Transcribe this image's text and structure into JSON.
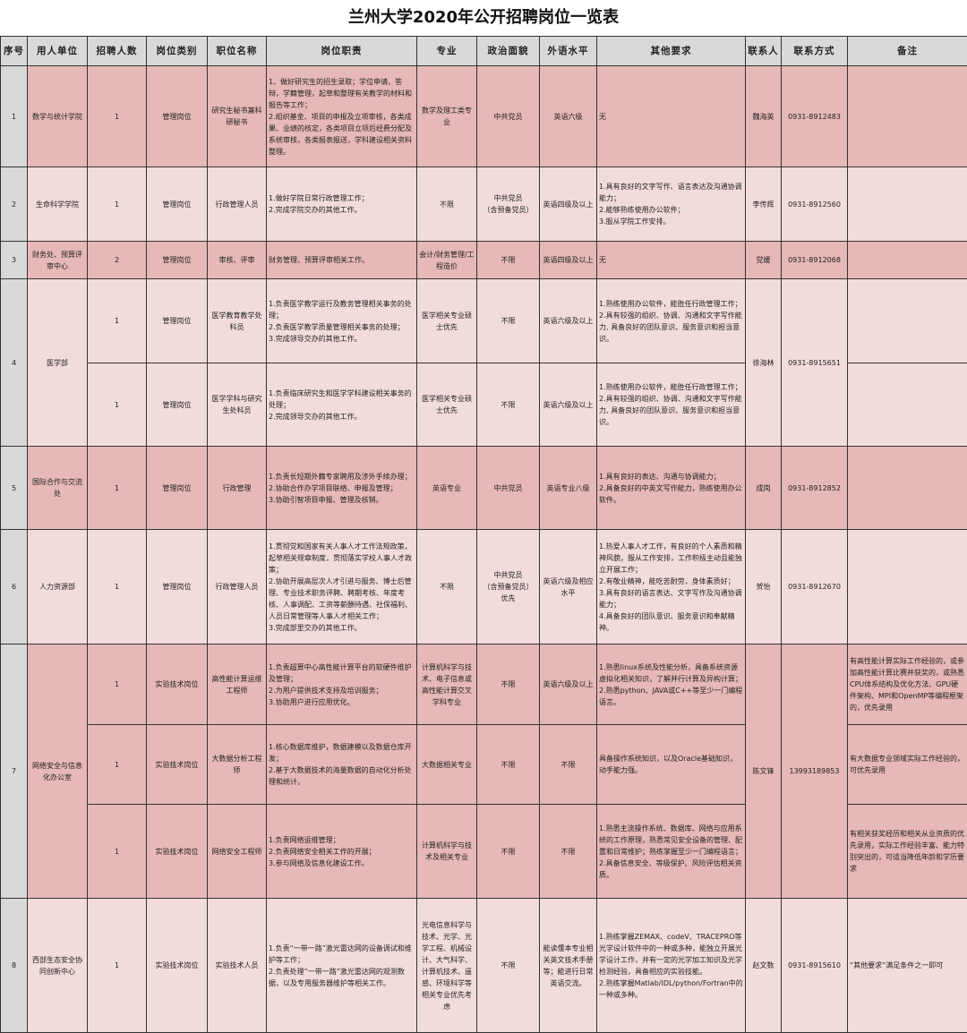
{
  "title": "兰州大学2020年公开招聘岗位一览表",
  "colors": {
    "header_bg": "#d9d9d9",
    "row_dark": "#e6b8b7",
    "row_light": "#f2dcdb"
  },
  "columns": [
    "序号",
    "用人单位",
    "招聘人数",
    "岗位类别",
    "职位名称",
    "岗位职责",
    "专业",
    "政治面貌",
    "外语水平",
    "其他要求",
    "联系人",
    "联系方式",
    "备注"
  ],
  "groups": [
    {
      "seq": "1",
      "unit": "数学与统计学院",
      "contact": "魏海英",
      "phone": "0931-8912483",
      "shade": "dark",
      "positions": [
        {
          "count": "1",
          "category": "管理岗位",
          "title": "研究生秘书兼科研秘书",
          "duties": "1、做好研究生的招生录取；学位申请、答辩，学籍管理，起草和整理有关教学的材料和报告等工作；\n2.组织基金、项目的申报及立项审核，各类成果、业绩的核定，各类项目立项后经费分配及系统审核，各类报表报送，学科建设相关资料整理。",
          "major": "数学及理工类专业",
          "politics": "中共党员",
          "language": "英语六级",
          "other": "无",
          "remarks": ""
        }
      ]
    },
    {
      "seq": "2",
      "unit": "生命科学学院",
      "contact": "李传辉",
      "phone": "0931-8912560",
      "shade": "light",
      "positions": [
        {
          "count": "1",
          "category": "管理岗位",
          "title": "行政管理人员",
          "duties": "1.做好学院日常行政管理工作；\n2.完成学院交办的其他工作。",
          "major": "不限",
          "politics": "中共党员\n（含预备党员）",
          "language": "英语四级及以上",
          "other": "1.具有良好的文字写作、语言表达及沟通协调能力；\n2.能够熟练使用办公软件；\n3.服从学院工作安排。",
          "remarks": ""
        }
      ]
    },
    {
      "seq": "3",
      "unit": "财务处、预算评审中心",
      "contact": "党媛",
      "phone": "0931-8912068",
      "shade": "dark",
      "positions": [
        {
          "count": "2",
          "category": "管理岗位",
          "title": "审核、评审",
          "duties": "财务管理、预算评审相关工作。",
          "major": "会计/财务管理/工程造价",
          "politics": "不限",
          "language": "英语四级及以上",
          "other": "无",
          "remarks": ""
        }
      ]
    },
    {
      "seq": "4",
      "unit": "医学部",
      "contact": "徐海林",
      "phone": "0931-8915651",
      "shade": "light",
      "positions": [
        {
          "count": "1",
          "category": "管理岗位",
          "title": "医学教育教学处科员",
          "duties": "1.负责医学教学运行及教务管理相关事务的处理；\n2.负责医学教学质量管理相关事务的处理；\n3.完成领导交办的其他工作。",
          "major": "医学相关专业硕士优先",
          "politics": "不限",
          "language": "英语六级及以上",
          "other": "1.熟练使用办公软件，能胜任行政管理工作；\n2.具有较强的组织、协调、沟通和文字写作能力, 具备良好的团队意识、服务意识和担当意识。",
          "remarks": ""
        },
        {
          "count": "1",
          "category": "管理岗位",
          "title": "医学学科与研究生处科员",
          "duties": "1.负责临床研究生和医学学科建设相关事务的处理；\n2.完成领导交办的其他工作。",
          "major": "医学相关专业硕士优先",
          "politics": "不限",
          "language": "英语六级及以上",
          "other": "1.熟练使用办公软件，能胜任行政管理工作；\n2.具有较强的组织、协调、沟通和文字写作能力, 具备良好的团队意识、服务意识和担当意识。",
          "remarks": ""
        }
      ]
    },
    {
      "seq": "5",
      "unit": "国际合作与交流处",
      "contact": "成岗",
      "phone": "0931-8912852",
      "shade": "dark",
      "positions": [
        {
          "count": "1",
          "category": "管理岗位",
          "title": "行政管理",
          "duties": "1.负责长短期外籍专家聘用及涉外手续办理；\n2.协助合作办学项目联络、申报及管理；\n3.协助引智项目申报、管理及核销。",
          "major": "英语专业",
          "politics": "中共党员",
          "language": "英语专业八级",
          "other": "1.具有良好的表达、沟通与协调能力；\n2.具备良好的中英文写作能力，熟练使用办公软件。",
          "remarks": ""
        }
      ]
    },
    {
      "seq": "6",
      "unit": "人力资源部",
      "contact": "贺怡",
      "phone": "0931-8912670",
      "shade": "light",
      "positions": [
        {
          "count": "1",
          "category": "管理岗位",
          "title": "行政管理人员",
          "duties": "1.贯彻党和国家有关人事人才工作法规政策，起草相关规章制度，贯彻落实学校人事人才政策；\n2.协助开展高层次人才引进与服务、博士后管理、专业技术职务评聘、聘期考核、年度考核、人事调配、工资等薪酬待遇、社保福利、人员日常管理等人事人才相关工作；\n3.完成部里交办的其他工作。",
          "major": "不限",
          "politics": "中共党员\n（含预备党员）\n优先",
          "language": "英语六级及相应水平",
          "other": "1.热爱人事人才工作，有良好的个人素质和精神风貌，服从工作安排，工作积极主动且能独立开展工作；\n2.有敬业精神，能吃苦耐劳，身体素质好；\n3.具有良好的语言表达、文字写作及沟通协调能力；\n4.具备良好的团队意识、服务意识和奉献精神。",
          "remarks": ""
        }
      ]
    },
    {
      "seq": "7",
      "unit": "网络安全与信息化办公室",
      "contact": "陈文锋",
      "phone": "13993189853",
      "shade": "dark",
      "positions": [
        {
          "count": "1",
          "category": "实验技术岗位",
          "title": "高性能计算运维工程师",
          "duties": "1.负责超算中心高性能计算平台的软硬件维护及管理；\n2.为用户提供技术支持及培训服务；\n3.协助用户进行应用优化。",
          "major": "计算机科学与技术、电子信息或高性能计算交叉学科专业",
          "politics": "不限",
          "language": "英语六级及以上",
          "other": "1.熟悉linux系统及性能分析，具备系统资源虚拟化相关知识，了解并行计算及异构计算；\n2.熟悉python、JAVA或C++等至少一门编程语言。",
          "remarks": "有高性能计算实际工作经验的，或参加高性能计算比赛并获奖的，或熟悉CPU体系结构及优化方法、GPU硬件架构、MPI和OpenMP等编程框架的，优先录用"
        },
        {
          "count": "1",
          "category": "实验技术岗位",
          "title": "大数据分析工程师",
          "duties": "1.核心数据库维护，数据建模以及数据仓库开发；\n2.基于大数据技术的海量数据的自动化分析处理和统计。",
          "major": "大数据相关专业",
          "politics": "不限",
          "language": "不限",
          "other": "具备操作系统知识，以及Oracle基础知识，动手能力强。",
          "remarks": "有大数据专业领域实际工作经验的，可优先录用"
        },
        {
          "count": "1",
          "category": "实验技术岗位",
          "title": "网络安全工程师",
          "duties": "1.负责网络运维管理；\n2.负责网络安全相关工作的开展；\n3.参与网络及信息化建设工作。",
          "major": "计算机科学与技术及相关专业",
          "politics": "不限",
          "language": "不限",
          "other": "1.熟悉主流操作系统、数据库、网络与应用系统的工作原理，熟悉常见安全设备的管理、配置和日常维护；熟练掌握至少一门编程语言；\n2.具备信息安全、等级保护、风险评估相关资质。",
          "remarks": "有相关获奖经历和相关从业资质的优先录用，实际工作经验丰富、能力特别突出的，可适当降低年龄和学历要求"
        }
      ]
    },
    {
      "seq": "8",
      "unit": "西部生态安全协同创新中心",
      "contact": "赵文数",
      "phone": "0931-8915610",
      "shade": "light",
      "positions": [
        {
          "count": "1",
          "category": "实验技术岗位",
          "title": "实验技术人员",
          "duties": "1.负责“一带一路”激光雷达网的设备调试和维护等工作；\n2.负责处理“一带一路”激光雷达网的观测数据，以及专用服务器维护等相关工作。",
          "major": "光电信息科学与技术、光学、光学工程、机械设计、大气科学、计算机技术、遥感、环境科学等相关专业优先考虑",
          "politics": "不限",
          "language": "能读懂本专业相关英文技术手册等；能进行日常英语交流。",
          "other": "1.熟练掌握ZEMAX、codeV、TRACEPRO等光学设计软件中的一种或多种，能独立开展光学设计工作，并有一定的光学加工知识及光学检测经验，具备相应的实验技能。\n2.熟练掌握Matlab/IDL/python/Fortran中的一种或多种。",
          "remarks": "“其他要求”满足条件之一即可"
        }
      ]
    }
  ]
}
